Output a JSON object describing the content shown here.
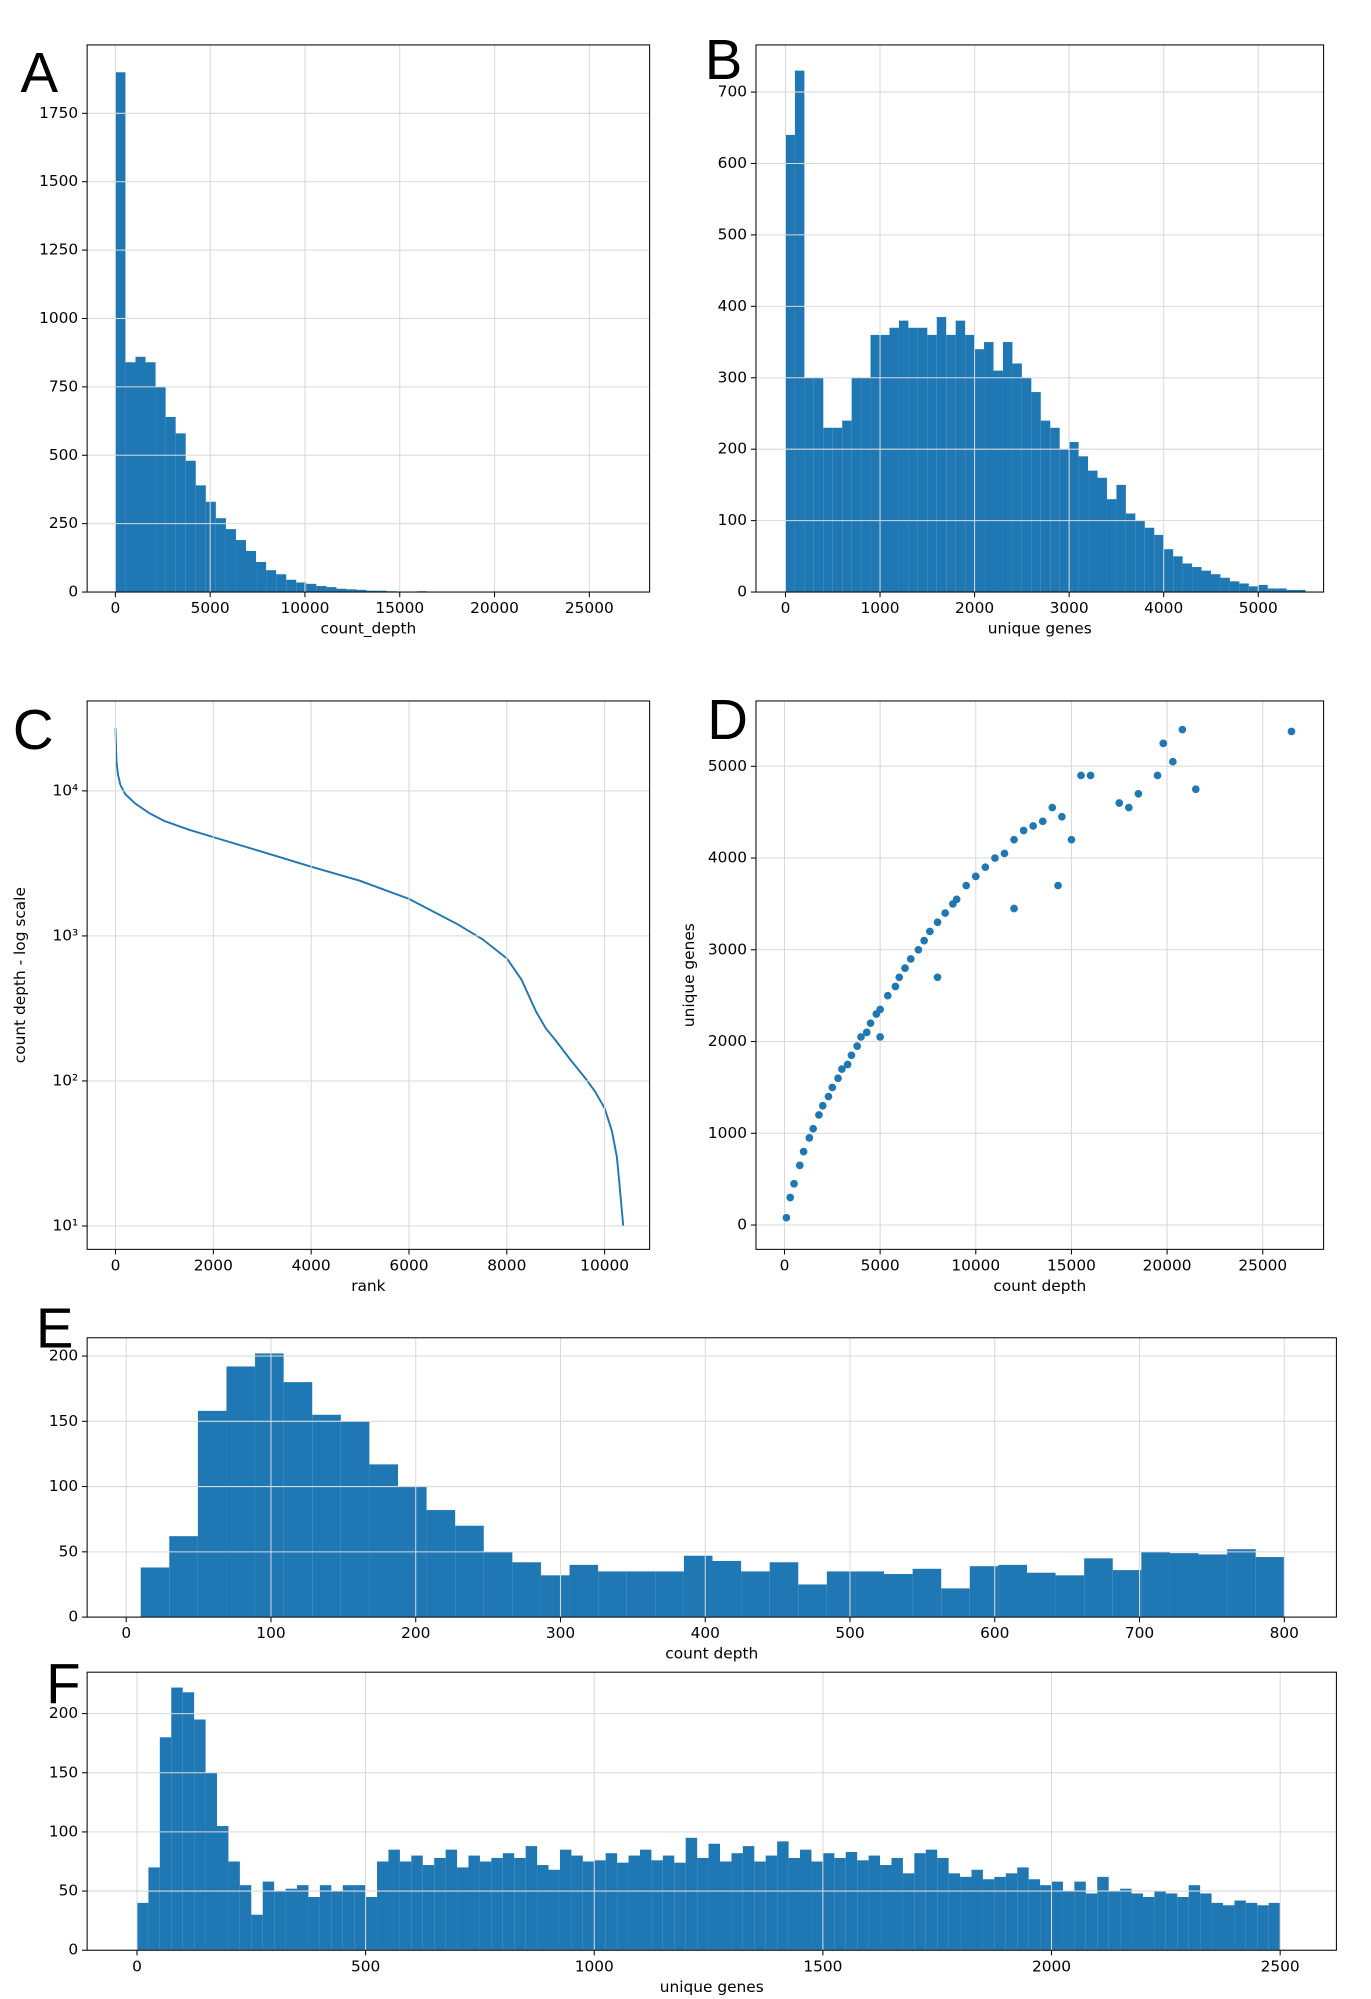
{
  "chart_data": [
    {
      "type": "histogram",
      "panel_label": "A",
      "xlabel": "count_depth",
      "color": "#1f77b4",
      "grid": true,
      "bins": [
        0,
        530,
        1060,
        1590,
        2120,
        2650,
        3180,
        3710,
        4240,
        4770,
        5300,
        5830,
        6360,
        6890,
        7420,
        7950,
        8480,
        9010,
        9540,
        10070,
        10600,
        11130,
        11660,
        12190,
        12720,
        13250,
        13780,
        14310,
        14840,
        15370,
        15900,
        16430,
        16960,
        17490,
        18020,
        18550,
        19080,
        19610,
        20140,
        20670,
        21200,
        21730,
        22260,
        22790,
        23320,
        23850,
        24380,
        24910,
        25440,
        25970,
        26500
      ],
      "values": [
        1900,
        840,
        860,
        840,
        750,
        640,
        580,
        480,
        390,
        330,
        270,
        230,
        190,
        150,
        110,
        80,
        65,
        45,
        35,
        30,
        22,
        18,
        12,
        10,
        8,
        5,
        5,
        3,
        2,
        2,
        3,
        1,
        0,
        0,
        1,
        0,
        0,
        0,
        0,
        0,
        0,
        0,
        0,
        0,
        0,
        0,
        0,
        0,
        0,
        1
      ],
      "xlim": [
        -1490,
        28180
      ],
      "xticks": [
        0,
        5000,
        10000,
        15000,
        20000,
        25000
      ],
      "ylim": [
        0,
        2000
      ],
      "yticks": [
        0,
        250,
        500,
        750,
        1000,
        1250,
        1500,
        1750
      ]
    },
    {
      "type": "histogram",
      "panel_label": "B",
      "xlabel": "unique genes",
      "color": "#1f77b4",
      "grid": true,
      "bins": [
        0,
        100,
        200,
        300,
        400,
        500,
        600,
        700,
        800,
        900,
        1000,
        1100,
        1200,
        1300,
        1400,
        1500,
        1600,
        1700,
        1800,
        1900,
        2000,
        2100,
        2200,
        2300,
        2400,
        2500,
        2600,
        2700,
        2800,
        2900,
        3000,
        3100,
        3200,
        3300,
        3400,
        3500,
        3600,
        3700,
        3800,
        3900,
        4000,
        4100,
        4200,
        4300,
        4400,
        4500,
        4600,
        4700,
        4800,
        4900,
        5000,
        5100,
        5200,
        5300,
        5400,
        5500
      ],
      "values": [
        640,
        730,
        300,
        300,
        230,
        230,
        240,
        300,
        300,
        360,
        360,
        370,
        380,
        370,
        370,
        360,
        385,
        360,
        380,
        360,
        340,
        350,
        310,
        350,
        320,
        300,
        280,
        240,
        230,
        200,
        210,
        190,
        170,
        160,
        130,
        150,
        110,
        100,
        90,
        80,
        60,
        50,
        40,
        35,
        30,
        25,
        20,
        15,
        12,
        8,
        10,
        5,
        5,
        3,
        3
      ],
      "xlim": [
        -312,
        5691
      ],
      "xticks": [
        0,
        1000,
        2000,
        3000,
        4000,
        5000
      ],
      "ylim": [
        0,
        766
      ],
      "yticks": [
        0,
        100,
        200,
        300,
        400,
        500,
        600,
        700
      ]
    },
    {
      "type": "line",
      "panel_label": "C",
      "xlabel": "rank",
      "ylabel": "count depth - log scale",
      "color": "#1f77b4",
      "grid": true,
      "yscale": "log",
      "x": [
        0,
        20,
        50,
        100,
        200,
        400,
        700,
        1000,
        1500,
        2000,
        3000,
        4000,
        5000,
        6000,
        7000,
        7500,
        8000,
        8300,
        8600,
        8800,
        9000,
        9300,
        9600,
        9800,
        10000,
        10150,
        10250,
        10300,
        10350,
        10380
      ],
      "values": [
        27000,
        16000,
        13000,
        11000,
        9500,
        8200,
        7000,
        6200,
        5400,
        4800,
        3800,
        3000,
        2400,
        1800,
        1200,
        950,
        700,
        500,
        300,
        230,
        190,
        140,
        105,
        85,
        65,
        45,
        30,
        20,
        13,
        10
      ],
      "xlim": [
        -580,
        10920
      ],
      "xticks": [
        0,
        2000,
        4000,
        6000,
        8000,
        10000
      ],
      "ylim": [
        6.9,
        41700
      ],
      "yticks": [
        {
          "value": 10,
          "label": "10¹"
        },
        {
          "value": 100,
          "label": "10²"
        },
        {
          "value": 1000,
          "label": "10³"
        },
        {
          "value": 10000,
          "label": "10⁴"
        }
      ]
    },
    {
      "type": "scatter",
      "panel_label": "D",
      "xlabel": "count depth",
      "ylabel": "unique genes",
      "color": "#1f77b4",
      "grid": true,
      "x": [
        100,
        300,
        500,
        800,
        1000,
        1300,
        1500,
        1800,
        2000,
        2300,
        2500,
        2800,
        3000,
        3300,
        3500,
        3800,
        4000,
        4300,
        4500,
        4800,
        5000,
        5400,
        5800,
        6000,
        6300,
        6600,
        7000,
        7300,
        7600,
        8000,
        8400,
        8800,
        9000,
        9500,
        10000,
        10500,
        11000,
        11500,
        12000,
        12500,
        13000,
        13500,
        14000,
        14500,
        15000,
        15500,
        16000,
        17500,
        18000,
        18500,
        19500,
        19800,
        20300,
        20800,
        21500,
        26500,
        5000,
        8000,
        12000,
        14300
      ],
      "values": [
        80,
        300,
        450,
        650,
        800,
        950,
        1050,
        1200,
        1300,
        1400,
        1500,
        1600,
        1700,
        1750,
        1850,
        1950,
        2050,
        2100,
        2200,
        2300,
        2350,
        2500,
        2600,
        2700,
        2800,
        2900,
        3000,
        3100,
        3200,
        3300,
        3400,
        3500,
        3550,
        3700,
        3800,
        3900,
        4000,
        4050,
        4200,
        4300,
        4350,
        4400,
        4550,
        4450,
        4200,
        4900,
        4900,
        4600,
        4550,
        4700,
        4900,
        5250,
        5050,
        5400,
        4750,
        5380,
        2050,
        2700,
        3450,
        3700
      ],
      "xlim": [
        -1490,
        28180
      ],
      "xticks": [
        0,
        5000,
        10000,
        15000,
        20000,
        25000
      ],
      "ylim": [
        -265,
        5712
      ],
      "yticks": [
        0,
        1000,
        2000,
        3000,
        4000,
        5000
      ]
    },
    {
      "type": "histogram",
      "panel_label": "E",
      "xlabel": "count depth",
      "color": "#1f77b4",
      "grid": true,
      "bins": [
        10,
        29.75,
        49.5,
        69.25,
        89,
        108.75,
        128.5,
        148.25,
        168,
        187.75,
        207.5,
        227.25,
        247,
        266.75,
        286.5,
        306.25,
        326,
        345.75,
        365.5,
        385.25,
        405,
        424.75,
        444.5,
        464.25,
        484,
        503.75,
        523.5,
        543.25,
        563,
        582.75,
        602.5,
        622.25,
        642,
        661.75,
        681.5,
        701.25,
        721,
        740.75,
        760.5,
        780.25,
        800
      ],
      "values": [
        38,
        62,
        158,
        192,
        202,
        180,
        155,
        150,
        117,
        100,
        82,
        70,
        50,
        42,
        32,
        40,
        35,
        35,
        35,
        47,
        43,
        35,
        42,
        25,
        35,
        35,
        33,
        37,
        22,
        39,
        40,
        34,
        32,
        45,
        36,
        50,
        49,
        48,
        52,
        46
      ],
      "xlim": [
        -27,
        836
      ],
      "xticks": [
        0,
        100,
        200,
        300,
        400,
        500,
        600,
        700,
        800
      ],
      "ylim": [
        0,
        214
      ],
      "yticks": [
        0,
        50,
        100,
        150,
        200
      ]
    },
    {
      "type": "histogram",
      "panel_label": "F",
      "xlabel": "unique genes",
      "color": "#1f77b4",
      "grid": true,
      "bins": [
        0,
        25,
        50,
        75,
        100,
        125,
        150,
        175,
        200,
        225,
        250,
        275,
        300,
        325,
        350,
        375,
        400,
        425,
        450,
        475,
        500,
        525,
        550,
        575,
        600,
        625,
        650,
        675,
        700,
        725,
        750,
        775,
        800,
        825,
        850,
        875,
        900,
        925,
        950,
        975,
        1000,
        1025,
        1050,
        1075,
        1100,
        1125,
        1150,
        1175,
        1200,
        1225,
        1250,
        1275,
        1300,
        1325,
        1350,
        1375,
        1400,
        1425,
        1450,
        1475,
        1500,
        1525,
        1550,
        1575,
        1600,
        1625,
        1650,
        1675,
        1700,
        1725,
        1750,
        1775,
        1800,
        1825,
        1850,
        1875,
        1900,
        1925,
        1950,
        1975,
        2000,
        2025,
        2050,
        2075,
        2100,
        2125,
        2150,
        2175,
        2200,
        2225,
        2250,
        2275,
        2300,
        2325,
        2350,
        2375,
        2400,
        2425,
        2450,
        2475,
        2500
      ],
      "values": [
        40,
        70,
        180,
        222,
        218,
        195,
        150,
        105,
        75,
        55,
        30,
        58,
        50,
        52,
        55,
        45,
        55,
        50,
        55,
        55,
        45,
        75,
        85,
        75,
        80,
        72,
        78,
        85,
        70,
        80,
        75,
        78,
        82,
        78,
        88,
        72,
        68,
        85,
        80,
        75,
        76,
        82,
        74,
        80,
        85,
        76,
        80,
        74,
        95,
        78,
        90,
        75,
        82,
        88,
        75,
        80,
        92,
        78,
        85,
        75,
        82,
        78,
        83,
        76,
        80,
        72,
        78,
        65,
        82,
        85,
        78,
        65,
        62,
        68,
        60,
        62,
        65,
        70,
        60,
        55,
        58,
        50,
        58,
        48,
        62,
        50,
        52,
        48,
        45,
        50,
        48,
        45,
        55,
        48,
        40,
        38,
        42,
        40,
        38,
        40
      ],
      "xlim": [
        -109,
        2623
      ],
      "xticks": [
        0,
        500,
        1000,
        1500,
        2000,
        2500
      ],
      "ylim": [
        0,
        235
      ],
      "yticks": [
        0,
        50,
        100,
        150,
        200
      ]
    }
  ]
}
